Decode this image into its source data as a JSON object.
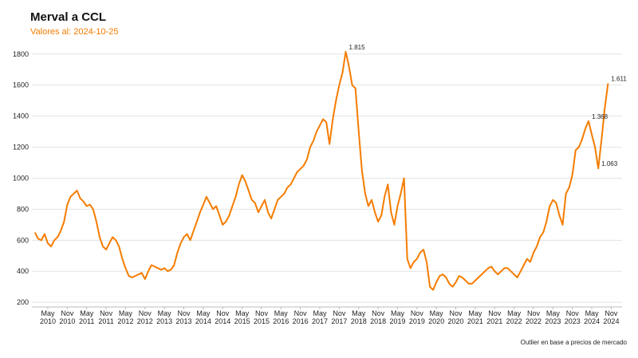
{
  "chart_data": {
    "type": "line",
    "title": "Merval a CCL",
    "subtitle": "Valores al: 2024-10-25",
    "note": "Outlier en base a precios de mercado",
    "color": "#f57c00",
    "x": [
      "2010-01",
      "2010-02",
      "2010-03",
      "2010-04",
      "2010-05",
      "2010-06",
      "2010-07",
      "2010-08",
      "2010-09",
      "2010-10",
      "2010-11",
      "2010-12",
      "2011-01",
      "2011-02",
      "2011-03",
      "2011-04",
      "2011-05",
      "2011-06",
      "2011-07",
      "2011-08",
      "2011-09",
      "2011-10",
      "2011-11",
      "2011-12",
      "2012-01",
      "2012-02",
      "2012-03",
      "2012-04",
      "2012-05",
      "2012-06",
      "2012-07",
      "2012-08",
      "2012-09",
      "2012-10",
      "2012-11",
      "2012-12",
      "2013-01",
      "2013-02",
      "2013-03",
      "2013-04",
      "2013-05",
      "2013-06",
      "2013-07",
      "2013-08",
      "2013-09",
      "2013-10",
      "2013-11",
      "2013-12",
      "2014-01",
      "2014-02",
      "2014-03",
      "2014-04",
      "2014-05",
      "2014-06",
      "2014-07",
      "2014-08",
      "2014-09",
      "2014-10",
      "2014-11",
      "2014-12",
      "2015-01",
      "2015-02",
      "2015-03",
      "2015-04",
      "2015-05",
      "2015-06",
      "2015-07",
      "2015-08",
      "2015-09",
      "2015-10",
      "2015-11",
      "2015-12",
      "2016-01",
      "2016-02",
      "2016-03",
      "2016-04",
      "2016-05",
      "2016-06",
      "2016-07",
      "2016-08",
      "2016-09",
      "2016-10",
      "2016-11",
      "2016-12",
      "2017-01",
      "2017-02",
      "2017-03",
      "2017-04",
      "2017-05",
      "2017-06",
      "2017-07",
      "2017-08",
      "2017-09",
      "2017-10",
      "2017-11",
      "2017-12",
      "2018-01",
      "2018-02",
      "2018-03",
      "2018-04",
      "2018-05",
      "2018-06",
      "2018-07",
      "2018-08",
      "2018-09",
      "2018-10",
      "2018-11",
      "2018-12",
      "2019-01",
      "2019-02",
      "2019-03",
      "2019-04",
      "2019-05",
      "2019-06",
      "2019-07",
      "2019-08",
      "2019-09",
      "2019-10",
      "2019-11",
      "2019-12",
      "2020-01",
      "2020-02",
      "2020-03",
      "2020-04",
      "2020-05",
      "2020-06",
      "2020-07",
      "2020-08",
      "2020-09",
      "2020-10",
      "2020-11",
      "2020-12",
      "2021-01",
      "2021-02",
      "2021-03",
      "2021-04",
      "2021-05",
      "2021-06",
      "2021-07",
      "2021-08",
      "2021-09",
      "2021-10",
      "2021-11",
      "2021-12",
      "2022-01",
      "2022-02",
      "2022-03",
      "2022-04",
      "2022-05",
      "2022-06",
      "2022-07",
      "2022-08",
      "2022-09",
      "2022-10",
      "2022-11",
      "2022-12",
      "2023-01",
      "2023-02",
      "2023-03",
      "2023-04",
      "2023-05",
      "2023-06",
      "2023-07",
      "2023-08",
      "2023-09",
      "2023-10",
      "2023-11",
      "2023-12",
      "2024-01",
      "2024-02",
      "2024-03",
      "2024-04",
      "2024-05",
      "2024-06",
      "2024-07",
      "2024-08",
      "2024-09",
      "2024-10"
    ],
    "values": [
      650,
      610,
      600,
      640,
      580,
      560,
      600,
      620,
      660,
      720,
      830,
      880,
      900,
      920,
      870,
      850,
      820,
      830,
      800,
      720,
      620,
      560,
      540,
      580,
      620,
      600,
      560,
      480,
      420,
      370,
      360,
      370,
      380,
      390,
      350,
      400,
      440,
      430,
      420,
      410,
      420,
      400,
      410,
      440,
      520,
      580,
      620,
      640,
      600,
      660,
      720,
      780,
      830,
      880,
      840,
      800,
      820,
      760,
      700,
      720,
      760,
      820,
      880,
      960,
      1020,
      980,
      920,
      860,
      840,
      780,
      820,
      860,
      780,
      740,
      800,
      860,
      880,
      900,
      940,
      960,
      1000,
      1040,
      1060,
      1080,
      1120,
      1200,
      1240,
      1300,
      1340,
      1380,
      1360,
      1220,
      1380,
      1500,
      1600,
      1680,
      1815,
      1720,
      1600,
      1580,
      1300,
      1050,
      900,
      820,
      860,
      780,
      720,
      760,
      880,
      960,
      780,
      700,
      820,
      900,
      1000,
      480,
      420,
      460,
      480,
      520,
      540,
      460,
      300,
      280,
      330,
      370,
      380,
      360,
      320,
      300,
      330,
      370,
      360,
      340,
      320,
      320,
      340,
      360,
      380,
      400,
      420,
      430,
      400,
      380,
      400,
      420,
      420,
      400,
      380,
      360,
      400,
      440,
      480,
      460,
      520,
      560,
      620,
      650,
      720,
      820,
      860,
      840,
      760,
      700,
      900,
      940,
      1020,
      1180,
      1200,
      1250,
      1320,
      1368,
      1280,
      1200,
      1063,
      1250,
      1450,
      1611
    ],
    "annotations": [
      {
        "text": "1.815",
        "x": "2018-01",
        "y": 1815
      },
      {
        "text": "1.611",
        "x": "2024-10",
        "y": 1611
      },
      {
        "text": "1.368",
        "x": "2024-04",
        "y": 1368
      },
      {
        "text": "1.063",
        "x": "2024-07",
        "y": 1063
      }
    ],
    "ylim": [
      170,
      1840
    ],
    "yticks": [
      200,
      400,
      600,
      800,
      1000,
      1200,
      1400,
      1600,
      1800
    ],
    "xticks": [
      {
        "value": "2010-05",
        "label": "May 2010"
      },
      {
        "value": "2010-11",
        "label": "Nov 2010"
      },
      {
        "value": "2011-05",
        "label": "May 2011"
      },
      {
        "value": "2011-11",
        "label": "Nov 2011"
      },
      {
        "value": "2012-05",
        "label": "May 2012"
      },
      {
        "value": "2012-11",
        "label": "Nov 2012"
      },
      {
        "value": "2013-05",
        "label": "May 2013"
      },
      {
        "value": "2013-11",
        "label": "Nov 2013"
      },
      {
        "value": "2014-05",
        "label": "May 2014"
      },
      {
        "value": "2014-11",
        "label": "Nov 2014"
      },
      {
        "value": "2015-05",
        "label": "May 2015"
      },
      {
        "value": "2015-11",
        "label": "Nov 2015"
      },
      {
        "value": "2016-05",
        "label": "May 2016"
      },
      {
        "value": "2016-11",
        "label": "Nov 2016"
      },
      {
        "value": "2017-05",
        "label": "May 2017"
      },
      {
        "value": "2017-11",
        "label": "Nov 2017"
      },
      {
        "value": "2018-05",
        "label": "May 2018"
      },
      {
        "value": "2018-11",
        "label": "Nov 2018"
      },
      {
        "value": "2019-05",
        "label": "May 2019"
      },
      {
        "value": "2019-11",
        "label": "Nov 2019"
      },
      {
        "value": "2020-05",
        "label": "May 2020"
      },
      {
        "value": "2020-11",
        "label": "Nov 2020"
      },
      {
        "value": "2021-05",
        "label": "May 2021"
      },
      {
        "value": "2021-11",
        "label": "Nov 2021"
      },
      {
        "value": "2022-05",
        "label": "May 2022"
      },
      {
        "value": "2022-11",
        "label": "Nov 2022"
      },
      {
        "value": "2023-05",
        "label": "May 2023"
      },
      {
        "value": "2023-11",
        "label": "Nov 2023"
      },
      {
        "value": "2024-05",
        "label": "May 2024"
      },
      {
        "value": "2024-11",
        "label": "Nov 2024"
      }
    ],
    "grid": true
  }
}
